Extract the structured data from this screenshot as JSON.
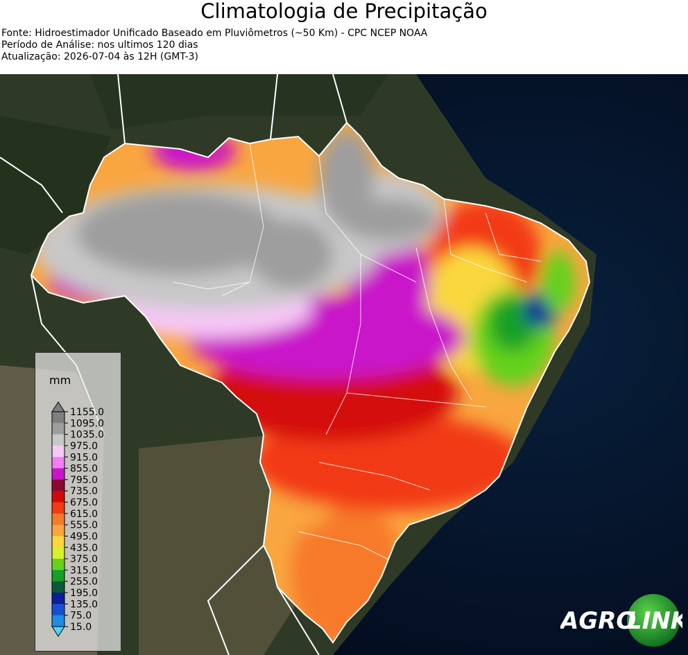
{
  "header": {
    "title": "Climatologia de Precipitação",
    "source": "Fonte: Hidroestimador Unificado Baseado em Pluviômetros (~50 Km) - CPC NCEP NOAA",
    "period": "Período de Análise: nos ultimos 120 dias",
    "updated": "Atualização: 2026-07-04 às 12H (GMT-3)"
  },
  "legend": {
    "unit": "mm",
    "levels": [
      {
        "label": "1155.0",
        "color": "#7f7f7f"
      },
      {
        "label": "1095.0",
        "color": "#9e9e9e"
      },
      {
        "label": "1035.0",
        "color": "#c8c8c8"
      },
      {
        "label": "975.0",
        "color": "#f6c8f6"
      },
      {
        "label": "915.0",
        "color": "#f27ef2"
      },
      {
        "label": "855.0",
        "color": "#c916c9"
      },
      {
        "label": "795.0",
        "color": "#8c0a32"
      },
      {
        "label": "735.0",
        "color": "#d40a0a"
      },
      {
        "label": "675.0",
        "color": "#f23a14"
      },
      {
        "label": "615.0",
        "color": "#f77a2a"
      },
      {
        "label": "555.0",
        "color": "#f9a640"
      },
      {
        "label": "495.0",
        "color": "#fad83c"
      },
      {
        "label": "435.0",
        "color": "#d8f02a"
      },
      {
        "label": "375.0",
        "color": "#64d21e"
      },
      {
        "label": "315.0",
        "color": "#14a028"
      },
      {
        "label": "255.0",
        "color": "#0a5a37"
      },
      {
        "label": "195.0",
        "color": "#0a1e9a"
      },
      {
        "label": "135.0",
        "color": "#1650d2"
      },
      {
        "label": "75.0",
        "color": "#1e8ce6"
      },
      {
        "label": "15.0",
        "color": "#3cc8f0"
      }
    ],
    "under_color": "#50d2f8"
  },
  "logo": {
    "agro": "AGRO",
    "link": "LINK"
  }
}
